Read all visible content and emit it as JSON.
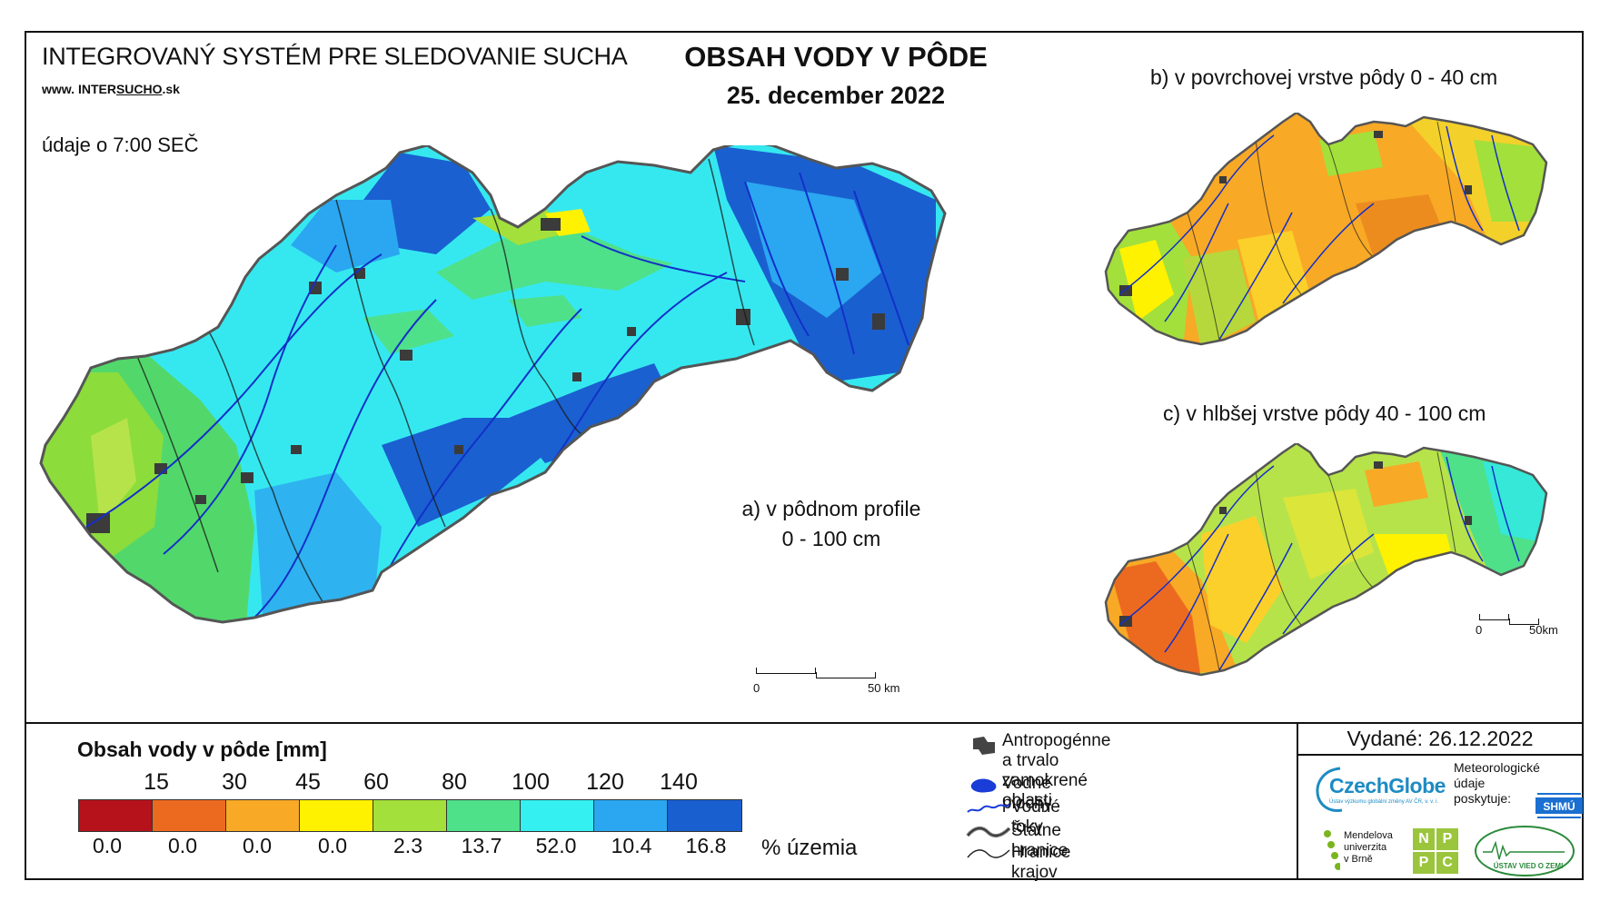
{
  "header": {
    "system_title": "INTEGROVANÝ SYSTÉM PRE SLEDOVANIE SUCHA",
    "website_prefix": "www. ",
    "website_mid1": "INTER",
    "website_mid2": "SUCHO",
    "website_suffix": ".sk",
    "time_note": "údaje o 7:00 SEČ",
    "main_title": "OBSAH VODY V PÔDE",
    "date": "25. december 2022"
  },
  "maps": {
    "a_line1": "a) v pôdnom profile",
    "a_line2": "0 - 100 cm",
    "b_label": "b) v povrchovej vrstve pôdy 0 - 40 cm",
    "c_label": "c) v hlbšej vrstve pôdy 40 - 100 cm",
    "scalebar_main": {
      "start": "0",
      "end": "50 km"
    },
    "scalebar_c": {
      "start": "0",
      "end": "50km"
    }
  },
  "legend": {
    "title": "Obsah vody v pôde  [mm]",
    "thresholds": [
      "15",
      "30",
      "45",
      "60",
      "80",
      "100",
      "120",
      "140"
    ],
    "colors": [
      "#b5121b",
      "#ec6a1f",
      "#f8a926",
      "#fff200",
      "#a3e03b",
      "#4fe08a",
      "#35f0f0",
      "#2aa7f0",
      "#1a5fd0"
    ],
    "percentages": [
      "0.0",
      "0.0",
      "0.0",
      "0.0",
      "2.3",
      "13.7",
      "52.0",
      "10.4",
      "16.8"
    ],
    "percent_label": "% územia"
  },
  "symbols": {
    "anthro_line1": "Antropogénne a trvalo",
    "anthro_line2": "zamokrené oblasti",
    "water_bodies": "Vodné plochy",
    "water_streams": "Vodné toky",
    "state_border": "Štátne hranice",
    "region_border": "Hranice krajov"
  },
  "footer": {
    "issued": "Vydané: 26.12.2022",
    "czechglobe": "CzechGlobe",
    "czechglobe_sub": "Ústav výzkumu globální změny AV ČR, v. v. i.",
    "meteo_line1": "Meteorologické",
    "meteo_line2": "údaje",
    "meteo_line3": "poskytuje:",
    "shmu": "SHMÚ",
    "mendel_line1": "Mendelova",
    "mendel_line2": "univerzita",
    "mendel_line3": "v Brně",
    "nppc": [
      "N",
      "P",
      "P",
      "C"
    ],
    "uvz": "ÚSTAV VIED O ZEMI"
  }
}
